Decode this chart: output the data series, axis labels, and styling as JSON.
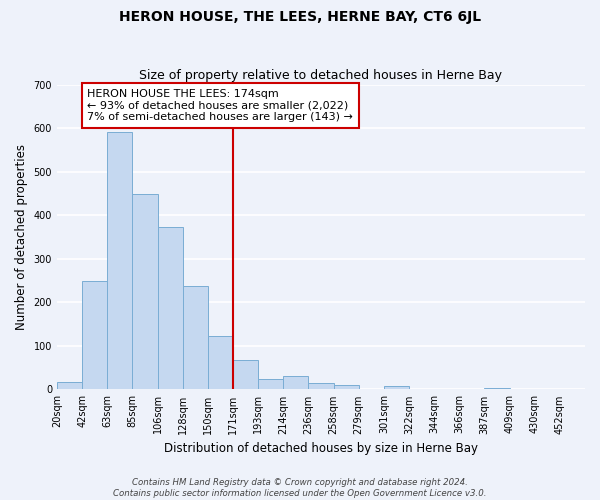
{
  "title": "HERON HOUSE, THE LEES, HERNE BAY, CT6 6JL",
  "subtitle": "Size of property relative to detached houses in Herne Bay",
  "xlabel": "Distribution of detached houses by size in Herne Bay",
  "ylabel": "Number of detached properties",
  "footer_line1": "Contains HM Land Registry data © Crown copyright and database right 2024.",
  "footer_line2": "Contains public sector information licensed under the Open Government Licence v3.0.",
  "bin_labels": [
    "20sqm",
    "42sqm",
    "63sqm",
    "85sqm",
    "106sqm",
    "128sqm",
    "150sqm",
    "171sqm",
    "193sqm",
    "214sqm",
    "236sqm",
    "258sqm",
    "279sqm",
    "301sqm",
    "322sqm",
    "344sqm",
    "366sqm",
    "387sqm",
    "409sqm",
    "430sqm",
    "452sqm"
  ],
  "bar_values": [
    18,
    248,
    590,
    449,
    374,
    237,
    122,
    67,
    24,
    31,
    14,
    10,
    0,
    9,
    0,
    0,
    0,
    4,
    0,
    0,
    0
  ],
  "bar_color": "#c5d8f0",
  "bar_edge_color": "#7aadd4",
  "property_line_color": "#cc0000",
  "annotation_text_line1": "HERON HOUSE THE LEES: 174sqm",
  "annotation_text_line2": "← 93% of detached houses are smaller (2,022)",
  "annotation_text_line3": "7% of semi-detached houses are larger (143) →",
  "annotation_box_color": "#ffffff",
  "annotation_border_color": "#cc0000",
  "ylim": [
    0,
    700
  ],
  "yticks": [
    0,
    100,
    200,
    300,
    400,
    500,
    600,
    700
  ],
  "background_color": "#eef2fa",
  "grid_color": "#ffffff",
  "title_fontsize": 10,
  "subtitle_fontsize": 9,
  "axis_label_fontsize": 8.5,
  "tick_fontsize": 7,
  "annotation_fontsize": 8,
  "footer_fontsize": 6.2
}
